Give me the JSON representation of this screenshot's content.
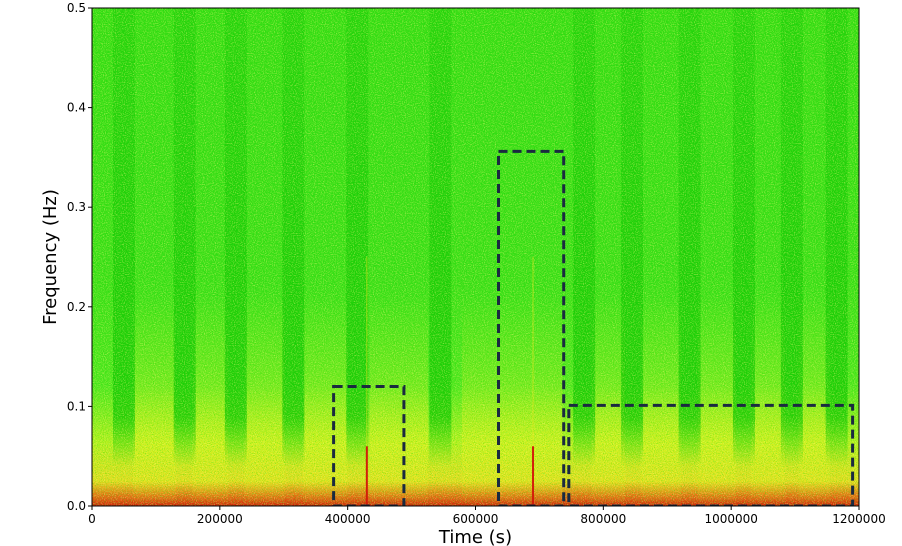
{
  "chart_data": {
    "type": "heatmap",
    "title": "",
    "xlabel": "Time (s)",
    "ylabel": "Frequency (Hz)",
    "xlim": [
      0,
      1200000
    ],
    "ylim": [
      0,
      0.5
    ],
    "x_ticks": [
      0,
      200000,
      400000,
      600000,
      800000,
      1000000,
      1200000
    ],
    "x_tick_labels": [
      "0",
      "200000",
      "400000",
      "600000",
      "800000",
      "1000000",
      "1200000"
    ],
    "y_ticks": [
      0.0,
      0.1,
      0.2,
      0.3,
      0.4,
      0.5
    ],
    "y_tick_labels": [
      "0.0",
      "0.1",
      "0.2",
      "0.3",
      "0.4",
      "0.5"
    ],
    "colormap": [
      "#00c800",
      "#32e61e",
      "#aaf01e",
      "#e6f01e",
      "#f0c81e",
      "#f07814",
      "#d21e0a"
    ],
    "vertical_bands_x": [
      50000,
      145000,
      225000,
      315000,
      415000,
      545000,
      770000,
      845000,
      935000,
      1020000,
      1095000,
      1165000
    ],
    "spike_x": [
      430000,
      690000
    ],
    "highlight_boxes": [
      {
        "x0": 378000,
        "x1": 488000,
        "y0": 0.0,
        "y1": 0.12,
        "style": "dashed",
        "color": "#1a2a40"
      },
      {
        "x0": 636000,
        "x1": 738000,
        "y0": 0.0,
        "y1": 0.356,
        "style": "dashed",
        "color": "#1a2a40"
      },
      {
        "x0": 746000,
        "x1": 1190000,
        "y0": 0.0,
        "y1": 0.101,
        "style": "dashed",
        "color": "#1a2a40"
      }
    ],
    "grid": false
  }
}
